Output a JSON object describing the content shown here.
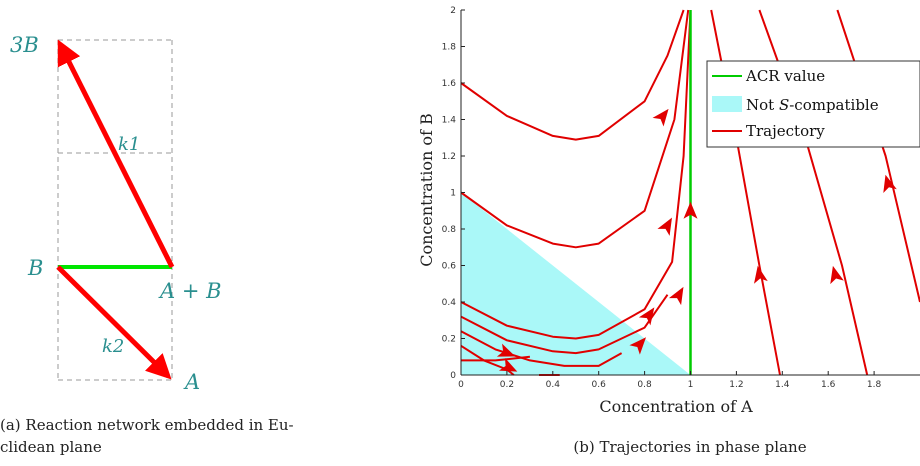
{
  "panel_a": {
    "nodes": {
      "three_b": {
        "label": "3B"
      },
      "b": {
        "label": "B"
      },
      "a_plus_b": {
        "label": "A + B"
      },
      "a": {
        "label": "A"
      }
    },
    "rate_labels": {
      "k1": "k1",
      "k2": "k2"
    },
    "caption_line1": "(a) Reaction network embedded in Eu-",
    "caption_line2": "clidean plane",
    "colors": {
      "reaction_arrow": "#ff0000",
      "acr_edge": "#00e600",
      "label": "#2a8f8f",
      "grid": "#999999"
    }
  },
  "panel_b": {
    "caption": "(b) Trajectories in phase plane",
    "legend": {
      "acr": "ACR value",
      "not_compatible_prefix": "Not ",
      "not_compatible_symbol": "S",
      "not_compatible_suffix": "-compatible",
      "trajectory": "Trajectory"
    },
    "colors": {
      "trajectory": "#e00000",
      "acr": "#00cc00",
      "region": "#aaf8f8"
    }
  },
  "chart_data": {
    "type": "line",
    "xlabel": "Concentration of A",
    "ylabel": "Concentration of B",
    "xlim": [
      0,
      2
    ],
    "ylim": [
      0,
      2
    ],
    "xticks": [
      "0",
      "0.2",
      "0.4",
      "0.6",
      "0.8",
      "1",
      "1.2",
      "1.4",
      "1.6",
      "1.8"
    ],
    "yticks": [
      "0",
      "0.2",
      "0.4",
      "0.6",
      "0.8",
      "1",
      "1.2",
      "1.4",
      "1.6",
      "1.8",
      "2"
    ],
    "legend_position": "top-right",
    "acr_line": {
      "x": 1,
      "y_range": [
        0,
        2
      ]
    },
    "not_compatible_region": [
      [
        0,
        0
      ],
      [
        0,
        1
      ],
      [
        1,
        0
      ]
    ],
    "series": [
      {
        "points": [
          [
            0,
            1.6
          ],
          [
            0.2,
            1.42
          ],
          [
            0.4,
            1.31
          ],
          [
            0.5,
            1.29
          ],
          [
            0.6,
            1.31
          ],
          [
            0.8,
            1.5
          ],
          [
            0.9,
            1.75
          ],
          [
            0.97,
            2.0
          ]
        ]
      },
      {
        "points": [
          [
            0,
            1.0
          ],
          [
            0.2,
            0.82
          ],
          [
            0.4,
            0.72
          ],
          [
            0.5,
            0.7
          ],
          [
            0.6,
            0.72
          ],
          [
            0.8,
            0.9
          ],
          [
            0.93,
            1.4
          ],
          [
            0.99,
            2.0
          ]
        ]
      },
      {
        "points": [
          [
            0,
            0.4
          ],
          [
            0.2,
            0.27
          ],
          [
            0.4,
            0.21
          ],
          [
            0.5,
            0.2
          ],
          [
            0.6,
            0.22
          ],
          [
            0.8,
            0.36
          ],
          [
            0.92,
            0.62
          ],
          [
            0.97,
            1.2
          ],
          [
            1.0,
            2.0
          ]
        ]
      },
      {
        "points": [
          [
            0,
            0.32
          ],
          [
            0.2,
            0.19
          ],
          [
            0.4,
            0.13
          ],
          [
            0.5,
            0.12
          ],
          [
            0.6,
            0.14
          ],
          [
            0.8,
            0.26
          ],
          [
            0.9,
            0.44
          ]
        ]
      },
      {
        "points": [
          [
            0,
            0.24
          ],
          [
            0.15,
            0.14
          ],
          [
            0.3,
            0.08
          ],
          [
            0.45,
            0.05
          ],
          [
            0.6,
            0.05
          ],
          [
            0.7,
            0.12
          ]
        ]
      },
      {
        "points": [
          [
            0,
            0.16
          ],
          [
            0.1,
            0.08
          ],
          [
            0.2,
            0.03
          ],
          [
            0.23,
            0.0
          ]
        ]
      },
      {
        "points": [
          [
            0,
            0.08
          ],
          [
            0.15,
            0.08
          ],
          [
            0.3,
            0.1
          ]
        ]
      },
      {
        "points": [
          [
            0.34,
            0.0
          ],
          [
            0.43,
            0.0
          ]
        ]
      },
      {
        "points": [
          [
            1.0,
            0.0
          ],
          [
            1.0,
            2.0
          ]
        ]
      },
      {
        "points": [
          [
            1.39,
            0.0
          ],
          [
            1.3,
            0.6
          ],
          [
            1.2,
            1.3
          ],
          [
            1.09,
            2.0
          ]
        ]
      },
      {
        "points": [
          [
            1.77,
            0.0
          ],
          [
            1.66,
            0.6
          ],
          [
            1.5,
            1.3
          ],
          [
            1.3,
            2.0
          ]
        ]
      },
      {
        "points": [
          [
            2.0,
            0.4
          ],
          [
            1.85,
            1.2
          ],
          [
            1.64,
            2.0
          ]
        ]
      }
    ],
    "arrows": [
      {
        "x": 0.88,
        "y": 1.42,
        "dir": [
          1,
          1.6
        ]
      },
      {
        "x": 0.9,
        "y": 0.82,
        "dir": [
          1,
          2.2
        ]
      },
      {
        "x": 0.95,
        "y": 0.44,
        "dir": [
          1,
          2.2
        ]
      },
      {
        "x": 0.82,
        "y": 0.33,
        "dir": [
          1,
          1.8
        ]
      },
      {
        "x": 0.78,
        "y": 0.17,
        "dir": [
          1,
          1.4
        ]
      },
      {
        "x": 0.2,
        "y": 0.12,
        "dir": [
          1,
          -0.5
        ]
      },
      {
        "x": 0.21,
        "y": 0.04,
        "dir": [
          1,
          -0.6
        ]
      },
      {
        "x": 1.0,
        "y": 0.9,
        "dir": [
          0,
          1
        ]
      },
      {
        "x": 1.3,
        "y": 0.55,
        "dir": [
          -0.15,
          1
        ]
      },
      {
        "x": 1.63,
        "y": 0.55,
        "dir": [
          -0.2,
          1
        ]
      },
      {
        "x": 1.86,
        "y": 1.05,
        "dir": [
          -0.22,
          1
        ]
      }
    ]
  }
}
